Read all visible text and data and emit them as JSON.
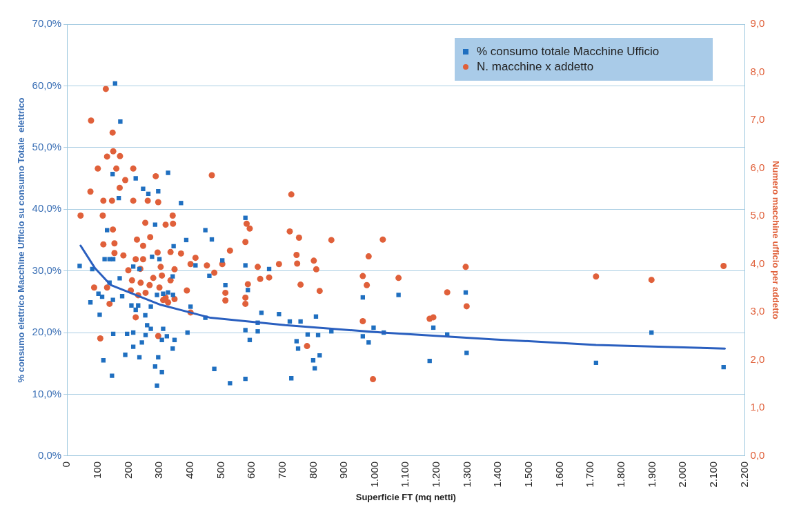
{
  "chart_data": {
    "type": "scatter",
    "xlabel": "Superficie FT (mq netti)",
    "ylabel": "% consumo elettrico Macchine Ufficio su consumo Totale  elettrico",
    "y2label": "Numero macchine ufficio per addetto",
    "xlim": [
      0,
      2200
    ],
    "xticks": [
      {
        "value": 0,
        "label": "0"
      },
      {
        "value": 100,
        "label": "100"
      },
      {
        "value": 200,
        "label": "200"
      },
      {
        "value": 300,
        "label": "300"
      },
      {
        "value": 400,
        "label": "400"
      },
      {
        "value": 500,
        "label": "500"
      },
      {
        "value": 600,
        "label": "600"
      },
      {
        "value": 700,
        "label": "700"
      },
      {
        "value": 800,
        "label": "800"
      },
      {
        "value": 900,
        "label": "900"
      },
      {
        "value": 1000,
        "label": "1.000"
      },
      {
        "value": 1100,
        "label": "1.100"
      },
      {
        "value": 1200,
        "label": "1.200"
      },
      {
        "value": 1300,
        "label": "1.300"
      },
      {
        "value": 1400,
        "label": "1.400"
      },
      {
        "value": 1500,
        "label": "1.500"
      },
      {
        "value": 1600,
        "label": "1.600"
      },
      {
        "value": 1700,
        "label": "1.700"
      },
      {
        "value": 1800,
        "label": "1.800"
      },
      {
        "value": 1900,
        "label": "1.900"
      },
      {
        "value": 2000,
        "label": "2.000"
      },
      {
        "value": 2100,
        "label": "2.100"
      },
      {
        "value": 2200,
        "label": "2.200"
      }
    ],
    "ylim": [
      0,
      70
    ],
    "yticks": [
      {
        "value": 0,
        "label": "0,0%"
      },
      {
        "value": 10,
        "label": "10,0%"
      },
      {
        "value": 20,
        "label": "20,0%"
      },
      {
        "value": 30,
        "label": "30,0%"
      },
      {
        "value": 40,
        "label": "40,0%"
      },
      {
        "value": 50,
        "label": "50,0%"
      },
      {
        "value": 60,
        "label": "60,0%"
      },
      {
        "value": 70,
        "label": "70,0%"
      }
    ],
    "y2lim": [
      0,
      9
    ],
    "y2ticks": [
      {
        "value": 0,
        "label": "0,0"
      },
      {
        "value": 1,
        "label": "1,0"
      },
      {
        "value": 2,
        "label": "2,0"
      },
      {
        "value": 3,
        "label": "3,0"
      },
      {
        "value": 4,
        "label": "4,0"
      },
      {
        "value": 5,
        "label": "5,0"
      },
      {
        "value": 6,
        "label": "6,0"
      },
      {
        "value": 7,
        "label": "7,0"
      },
      {
        "value": 8,
        "label": "8,0"
      },
      {
        "value": 9,
        "label": "9,0"
      }
    ],
    "grid": "y",
    "legend": "top right",
    "series": [
      {
        "name": "% consumo totale Macchine Ufficio",
        "type": "scatter",
        "axis": "y",
        "marker": "square",
        "color": "#1f6fc0",
        "x": [
          156,
          173,
          148,
          328,
          168,
          223,
          247,
          264,
          296,
          370,
          286,
          130,
          449,
          470,
          387,
          346,
          122,
          138,
          150,
          41,
          82,
          215,
          235,
          276,
          300,
          343,
          171,
          417,
          462,
          504,
          579,
          579,
          656,
          514,
          587,
          138,
          102,
          114,
          76,
          149,
          179,
          209,
          231,
          272,
          292,
          312,
          328,
          344,
          401,
          449,
          631,
          688,
          619,
          106,
          254,
          223,
          150,
          195,
          215,
          260,
          272,
          255,
          312,
          324,
          308,
          349,
          391,
          579,
          619,
          593,
          243,
          215,
          343,
          189,
          235,
          118,
          296,
          286,
          308,
          146,
          292,
          478,
          529,
          579,
          960,
          1076,
          1294,
          723,
          758,
          808,
          781,
          815,
          858,
          745,
          750,
          820,
          799,
          804,
          728,
          960,
          995,
          979,
          1028,
          1189,
          1177,
          1234,
          1297,
          1717,
          1897,
          2131
        ],
        "values": [
          60.4,
          54.2,
          45.7,
          45.9,
          41.8,
          45.0,
          43.3,
          42.5,
          42.9,
          41.0,
          37.5,
          36.6,
          36.6,
          35.1,
          35.0,
          34.0,
          31.9,
          31.9,
          31.9,
          30.8,
          30.3,
          30.7,
          30.3,
          32.3,
          31.9,
          29.1,
          28.8,
          30.9,
          29.2,
          31.7,
          38.6,
          30.9,
          30.3,
          27.7,
          26.9,
          28.1,
          26.3,
          25.8,
          24.9,
          25.3,
          25.9,
          24.4,
          24.4,
          24.2,
          26.1,
          26.3,
          26.5,
          26.1,
          24.2,
          22.4,
          23.2,
          23.0,
          21.6,
          22.9,
          22.8,
          23.7,
          19.8,
          19.8,
          20.0,
          21.2,
          20.6,
          19.6,
          20.6,
          19.4,
          18.8,
          18.8,
          20.0,
          20.4,
          20.2,
          18.8,
          18.4,
          17.7,
          17.4,
          16.4,
          16.0,
          15.5,
          16.0,
          14.5,
          13.6,
          13.0,
          11.4,
          14.1,
          11.8,
          12.5,
          25.7,
          26.1,
          26.5,
          21.8,
          21.8,
          22.6,
          19.7,
          19.6,
          20.2,
          18.6,
          17.4,
          16.3,
          15.5,
          14.2,
          12.6,
          19.4,
          20.8,
          18.4,
          20.0,
          20.8,
          15.4,
          19.7,
          16.7,
          15.1,
          20.0,
          14.4
        ]
      },
      {
        "name": "N. macchine x addetto",
        "type": "scatter",
        "axis": "y2",
        "marker": "circle",
        "color": "#e0603a",
        "x": [
          126,
          78,
          148,
          150,
          130,
          172,
          100,
          160,
          215,
          189,
          171,
          76,
          288,
          470,
          118,
          146,
          215,
          262,
          296,
          44,
          116,
          343,
          254,
          320,
          344,
          149,
          583,
          593,
          118,
          154,
          227,
          270,
          247,
          579,
          529,
          336,
          370,
          154,
          183,
          294,
          223,
          247,
          304,
          349,
          199,
          238,
          401,
          417,
          454,
          504,
          619,
          688,
          211,
          239,
          280,
          308,
          336,
          478,
          587,
          627,
          656,
          88,
          130,
          268,
          300,
          389,
          514,
          579,
          207,
          231,
          255,
          320,
          328,
          349,
          138,
          514,
          579,
          223,
          296,
          108,
          401,
          312,
          728,
          723,
          753,
          858,
          1025,
          745,
          747,
          801,
          809,
          979,
          960,
          1076,
          973,
          758,
          820,
          1234,
          1294,
          1297,
          960,
          1177,
          1189,
          779,
          993,
          1717,
          1897,
          2131
        ],
        "values": [
          7.65,
          6.99,
          6.74,
          6.35,
          6.24,
          6.25,
          5.99,
          5.99,
          5.99,
          5.75,
          5.59,
          5.51,
          5.83,
          5.85,
          5.32,
          5.32,
          5.32,
          5.32,
          5.29,
          5.01,
          5.01,
          5.01,
          4.86,
          4.82,
          4.84,
          4.72,
          4.84,
          4.74,
          4.41,
          4.43,
          4.51,
          4.56,
          4.38,
          4.46,
          4.28,
          4.25,
          4.22,
          4.23,
          4.18,
          4.24,
          4.1,
          4.1,
          3.94,
          3.89,
          3.87,
          3.9,
          4.0,
          4.13,
          3.97,
          4.0,
          3.94,
          4.0,
          3.66,
          3.61,
          3.71,
          3.76,
          3.66,
          3.82,
          3.58,
          3.69,
          3.72,
          3.51,
          3.51,
          3.56,
          3.51,
          3.45,
          3.4,
          3.3,
          3.45,
          3.35,
          3.4,
          3.3,
          3.2,
          3.27,
          3.17,
          3.24,
          3.17,
          2.89,
          2.5,
          2.45,
          2.99,
          3.25,
          5.45,
          4.68,
          4.55,
          4.5,
          4.51,
          4.19,
          4.01,
          4.07,
          3.89,
          4.16,
          3.75,
          3.71,
          3.56,
          3.57,
          3.44,
          3.41,
          3.94,
          3.12,
          2.81,
          2.86,
          2.89,
          2.29,
          1.6,
          3.74,
          3.67,
          3.96
        ]
      },
      {
        "type": "line",
        "axis": "y",
        "marker": "none",
        "line_style": "solid",
        "color": "#2a5fbf",
        "x": [
          44,
          90,
          142,
          304,
          466,
          708,
          1024,
          1387,
          1717,
          2135
        ],
        "values": [
          34.1,
          30.5,
          27.7,
          24.5,
          22.4,
          21.2,
          20.0,
          18.9,
          18.0,
          17.4
        ]
      }
    ]
  }
}
